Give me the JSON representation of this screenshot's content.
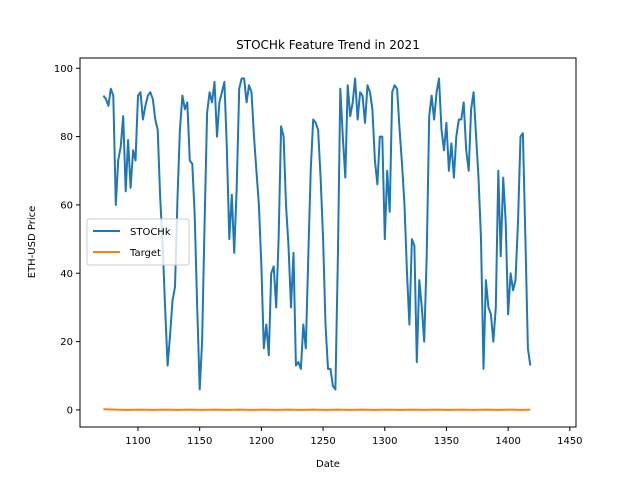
{
  "chart_data": {
    "type": "line",
    "title": "STOCHk Feature Trend in 2021",
    "xlabel": "Date",
    "ylabel": "ETH-USD Price",
    "xlim": [
      1053,
      1455
    ],
    "ylim": [
      -5,
      103
    ],
    "xticks": [
      1100,
      1150,
      1200,
      1250,
      1300,
      1350,
      1400,
      1450
    ],
    "yticks": [
      0,
      20,
      40,
      60,
      80,
      100
    ],
    "grid": false,
    "legend_position": "center-left",
    "series": [
      {
        "name": "STOCHk",
        "color": "#1f77b4",
        "points": [
          [
            1072,
            92
          ],
          [
            1074,
            91
          ],
          [
            1076,
            89
          ],
          [
            1078,
            94
          ],
          [
            1080,
            92
          ],
          [
            1082,
            60
          ],
          [
            1084,
            73
          ],
          [
            1086,
            77
          ],
          [
            1088,
            86
          ],
          [
            1090,
            64
          ],
          [
            1092,
            79
          ],
          [
            1094,
            65
          ],
          [
            1096,
            76
          ],
          [
            1098,
            73
          ],
          [
            1100,
            92
          ],
          [
            1102,
            93
          ],
          [
            1104,
            85
          ],
          [
            1106,
            89
          ],
          [
            1108,
            92
          ],
          [
            1110,
            93
          ],
          [
            1112,
            91
          ],
          [
            1114,
            85
          ],
          [
            1116,
            82
          ],
          [
            1118,
            62
          ],
          [
            1120,
            48
          ],
          [
            1122,
            30
          ],
          [
            1124,
            13
          ],
          [
            1126,
            22
          ],
          [
            1128,
            32
          ],
          [
            1130,
            36
          ],
          [
            1132,
            62
          ],
          [
            1134,
            82
          ],
          [
            1136,
            92
          ],
          [
            1138,
            88
          ],
          [
            1140,
            90
          ],
          [
            1142,
            73
          ],
          [
            1144,
            72
          ],
          [
            1146,
            57
          ],
          [
            1148,
            30
          ],
          [
            1150,
            6
          ],
          [
            1152,
            20
          ],
          [
            1154,
            55
          ],
          [
            1156,
            87
          ],
          [
            1158,
            93
          ],
          [
            1160,
            90
          ],
          [
            1162,
            96
          ],
          [
            1164,
            80
          ],
          [
            1166,
            90
          ],
          [
            1168,
            93
          ],
          [
            1170,
            96
          ],
          [
            1172,
            77
          ],
          [
            1174,
            50
          ],
          [
            1176,
            63
          ],
          [
            1178,
            46
          ],
          [
            1180,
            65
          ],
          [
            1182,
            94
          ],
          [
            1184,
            97
          ],
          [
            1186,
            97
          ],
          [
            1188,
            90
          ],
          [
            1190,
            95
          ],
          [
            1192,
            93
          ],
          [
            1194,
            80
          ],
          [
            1196,
            70
          ],
          [
            1198,
            60
          ],
          [
            1200,
            42
          ],
          [
            1202,
            18
          ],
          [
            1204,
            25
          ],
          [
            1206,
            16
          ],
          [
            1208,
            40
          ],
          [
            1210,
            42
          ],
          [
            1212,
            30
          ],
          [
            1214,
            50
          ],
          [
            1216,
            83
          ],
          [
            1218,
            80
          ],
          [
            1220,
            60
          ],
          [
            1222,
            48
          ],
          [
            1224,
            30
          ],
          [
            1226,
            46
          ],
          [
            1228,
            13
          ],
          [
            1230,
            14
          ],
          [
            1232,
            12
          ],
          [
            1234,
            25
          ],
          [
            1236,
            18
          ],
          [
            1238,
            45
          ],
          [
            1240,
            70
          ],
          [
            1242,
            85
          ],
          [
            1244,
            84
          ],
          [
            1246,
            82
          ],
          [
            1248,
            68
          ],
          [
            1250,
            50
          ],
          [
            1252,
            25
          ],
          [
            1254,
            12
          ],
          [
            1256,
            12
          ],
          [
            1258,
            7
          ],
          [
            1260,
            6
          ],
          [
            1262,
            45
          ],
          [
            1264,
            94
          ],
          [
            1266,
            80
          ],
          [
            1268,
            68
          ],
          [
            1270,
            95
          ],
          [
            1272,
            86
          ],
          [
            1274,
            90
          ],
          [
            1276,
            97
          ],
          [
            1278,
            85
          ],
          [
            1280,
            93
          ],
          [
            1282,
            92
          ],
          [
            1284,
            84
          ],
          [
            1286,
            95
          ],
          [
            1288,
            93
          ],
          [
            1290,
            88
          ],
          [
            1292,
            73
          ],
          [
            1294,
            66
          ],
          [
            1296,
            80
          ],
          [
            1298,
            80
          ],
          [
            1300,
            50
          ],
          [
            1302,
            70
          ],
          [
            1304,
            58
          ],
          [
            1306,
            93
          ],
          [
            1308,
            95
          ],
          [
            1310,
            94
          ],
          [
            1312,
            82
          ],
          [
            1314,
            72
          ],
          [
            1316,
            60
          ],
          [
            1318,
            40
          ],
          [
            1320,
            25
          ],
          [
            1322,
            50
          ],
          [
            1324,
            48
          ],
          [
            1326,
            14
          ],
          [
            1328,
            38
          ],
          [
            1330,
            30
          ],
          [
            1332,
            20
          ],
          [
            1334,
            45
          ],
          [
            1336,
            86
          ],
          [
            1338,
            92
          ],
          [
            1340,
            85
          ],
          [
            1342,
            93
          ],
          [
            1344,
            97
          ],
          [
            1346,
            82
          ],
          [
            1348,
            76
          ],
          [
            1350,
            84
          ],
          [
            1352,
            70
          ],
          [
            1354,
            78
          ],
          [
            1356,
            68
          ],
          [
            1358,
            80
          ],
          [
            1360,
            85
          ],
          [
            1362,
            85
          ],
          [
            1364,
            90
          ],
          [
            1366,
            76
          ],
          [
            1368,
            70
          ],
          [
            1370,
            88
          ],
          [
            1372,
            93
          ],
          [
            1374,
            80
          ],
          [
            1376,
            68
          ],
          [
            1378,
            50
          ],
          [
            1380,
            12
          ],
          [
            1382,
            38
          ],
          [
            1384,
            30
          ],
          [
            1386,
            28
          ],
          [
            1388,
            20
          ],
          [
            1390,
            30
          ],
          [
            1392,
            70
          ],
          [
            1394,
            45
          ],
          [
            1396,
            68
          ],
          [
            1398,
            55
          ],
          [
            1400,
            28
          ],
          [
            1402,
            40
          ],
          [
            1404,
            35
          ],
          [
            1406,
            38
          ],
          [
            1408,
            55
          ],
          [
            1410,
            80
          ],
          [
            1412,
            81
          ],
          [
            1414,
            50
          ],
          [
            1416,
            18
          ],
          [
            1418,
            13
          ]
        ]
      },
      {
        "name": "Target",
        "color": "#ff7f0e",
        "points": [
          [
            1072,
            0.2
          ],
          [
            1082,
            0.1
          ],
          [
            1092,
            0.0
          ],
          [
            1102,
            0.1
          ],
          [
            1112,
            0.0
          ],
          [
            1122,
            0.1
          ],
          [
            1132,
            0.0
          ],
          [
            1142,
            0.1
          ],
          [
            1152,
            0.0
          ],
          [
            1162,
            0.1
          ],
          [
            1172,
            0.0
          ],
          [
            1182,
            0.1
          ],
          [
            1192,
            0.0
          ],
          [
            1202,
            0.1
          ],
          [
            1212,
            0.0
          ],
          [
            1222,
            0.1
          ],
          [
            1232,
            0.0
          ],
          [
            1242,
            0.1
          ],
          [
            1252,
            0.0
          ],
          [
            1262,
            0.1
          ],
          [
            1272,
            0.0
          ],
          [
            1282,
            0.1
          ],
          [
            1292,
            0.0
          ],
          [
            1302,
            0.1
          ],
          [
            1312,
            0.0
          ],
          [
            1322,
            0.1
          ],
          [
            1332,
            0.0
          ],
          [
            1342,
            0.1
          ],
          [
            1352,
            0.0
          ],
          [
            1362,
            0.1
          ],
          [
            1372,
            0.0
          ],
          [
            1382,
            0.1
          ],
          [
            1392,
            0.0
          ],
          [
            1402,
            0.1
          ],
          [
            1412,
            0.0
          ],
          [
            1418,
            0.1
          ]
        ]
      }
    ]
  }
}
